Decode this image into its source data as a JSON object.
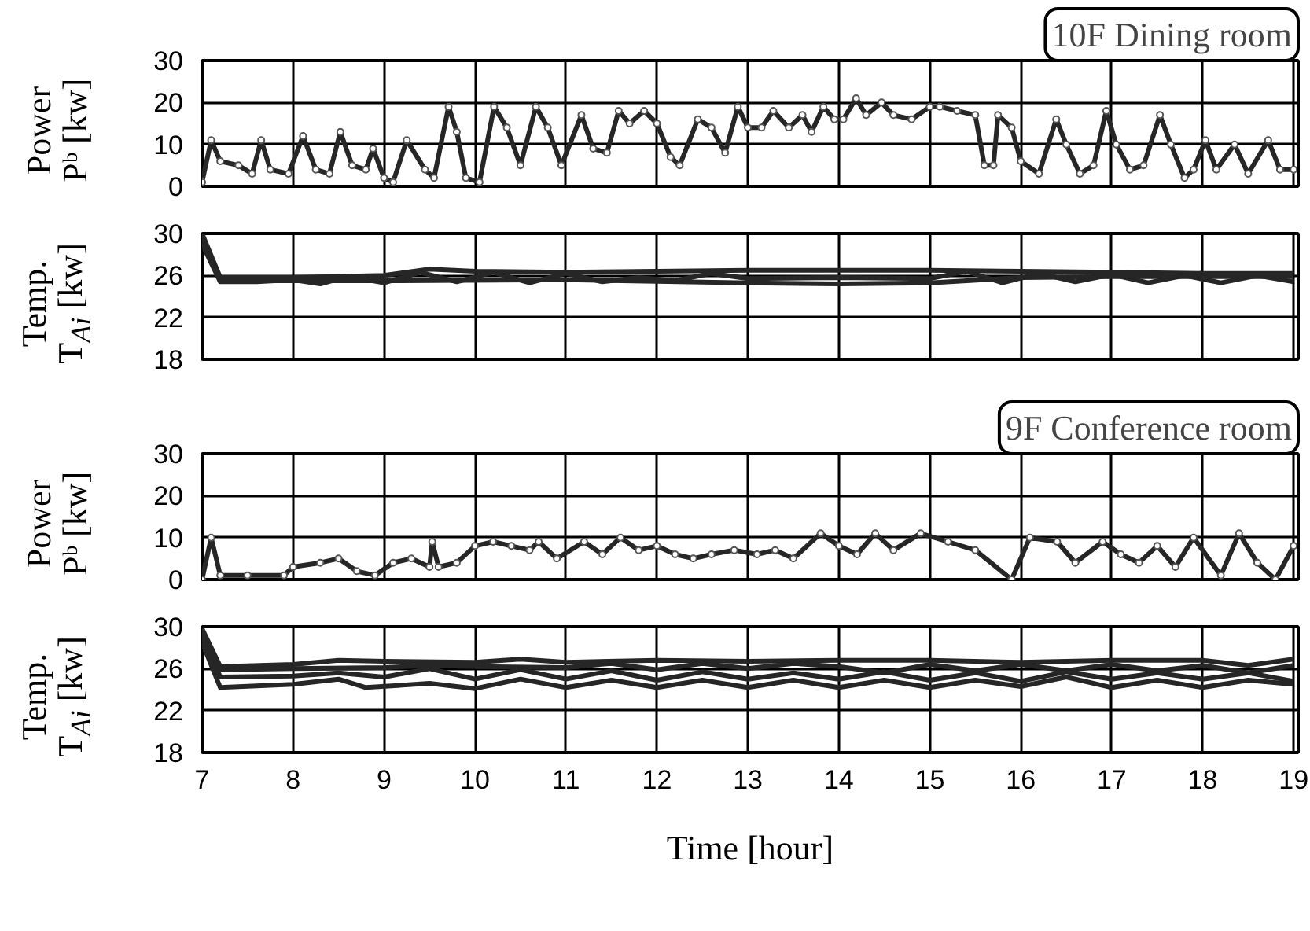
{
  "chart_data": [
    {
      "type": "line",
      "title": "10F Dining room",
      "ylabel": "Power Pᵇ [kw]",
      "xlim": [
        7,
        19.05
      ],
      "xticks": [
        7,
        8,
        9,
        10,
        11,
        12,
        13,
        14,
        15,
        16,
        17,
        18,
        19
      ],
      "ylim": [
        0,
        30
      ],
      "yticks": [
        0,
        10,
        20,
        30
      ],
      "grid": true,
      "tick_labels": "y",
      "marker": "circle",
      "line_style": "solid",
      "series": [
        {
          "color": "#262626",
          "x": [
            7.0,
            7.1,
            7.2,
            7.4,
            7.55,
            7.65,
            7.75,
            7.95,
            8.11,
            8.25,
            8.4,
            8.52,
            8.65,
            8.8,
            8.88,
            9.0,
            9.1,
            9.25,
            9.45,
            9.55,
            9.71,
            9.8,
            9.9,
            10.05,
            10.21,
            10.35,
            10.5,
            10.67,
            10.8,
            10.95,
            11.17,
            11.3,
            11.45,
            11.58,
            11.7,
            11.86,
            12.0,
            12.15,
            12.25,
            12.45,
            12.6,
            12.75,
            12.89,
            13.0,
            13.15,
            13.28,
            13.45,
            13.6,
            13.7,
            13.83,
            13.95,
            14.05,
            14.19,
            14.3,
            14.47,
            14.6,
            14.8,
            15.0,
            15.11,
            15.3,
            15.5,
            15.6,
            15.7,
            15.75,
            15.9,
            16.0,
            16.2,
            16.39,
            16.5,
            16.65,
            16.8,
            16.94,
            17.05,
            17.2,
            17.35,
            17.53,
            17.65,
            17.8,
            17.9,
            18.03,
            18.15,
            18.35,
            18.5,
            18.72,
            18.85,
            19.0
          ],
          "values": [
            1,
            11,
            6,
            5,
            3,
            11,
            4,
            3,
            12,
            4,
            3,
            13,
            5,
            4,
            9,
            2,
            1,
            11,
            4,
            2,
            19,
            13,
            2,
            1,
            19,
            14,
            5,
            19,
            14,
            5,
            17,
            9,
            8,
            18,
            15,
            18,
            15,
            7,
            5,
            16,
            14,
            8,
            19,
            14,
            14,
            18,
            14,
            17,
            13,
            19,
            16,
            16,
            21,
            17,
            20,
            17,
            16,
            19,
            19,
            18,
            17,
            5,
            5,
            17,
            14,
            6,
            3,
            16,
            10,
            3,
            5,
            18,
            10,
            4,
            5,
            17,
            10,
            2,
            4,
            11,
            4,
            10,
            3,
            11,
            4,
            4
          ]
        }
      ]
    },
    {
      "type": "line",
      "ylabel": "Temp. T$_{Ai}$ [kw]",
      "xlim": [
        7,
        19.05
      ],
      "xticks": [
        7,
        8,
        9,
        10,
        11,
        12,
        13,
        14,
        15,
        16,
        17,
        18,
        19
      ],
      "ylim": [
        18,
        30
      ],
      "yticks": [
        18,
        22,
        26,
        30
      ],
      "grid": true,
      "tick_labels": "y",
      "line_style": "solid",
      "series": [
        {
          "color": "#262626",
          "x": [
            7,
            7.2,
            8,
            9,
            9.5,
            10,
            11,
            12,
            13,
            14,
            15,
            16,
            17,
            18,
            19
          ],
          "values": [
            30,
            25.8,
            25.8,
            26,
            26.6,
            26.4,
            26.3,
            26.4,
            26.5,
            26.5,
            26.5,
            26.4,
            26.3,
            26.2,
            26.2
          ]
        },
        {
          "color": "#262626",
          "x": [
            7,
            7.2,
            7.6,
            8,
            8.3,
            8.6,
            9,
            9.4,
            9.8,
            10.2,
            10.6,
            11,
            11.4,
            11.8,
            12.2,
            12.6,
            13,
            14,
            15,
            15.4,
            15.8,
            16.2,
            16.6,
            17,
            17.4,
            17.8,
            18.2,
            18.6,
            19
          ],
          "values": [
            29,
            25.4,
            25.4,
            25.6,
            25.2,
            25.9,
            25.3,
            26.3,
            25.4,
            26.3,
            25.3,
            26.2,
            25.4,
            25.8,
            25.5,
            26.2,
            25.7,
            25.8,
            25.7,
            26.4,
            25.3,
            26.2,
            25.4,
            26.1,
            25.3,
            26,
            25.3,
            26,
            25.4
          ]
        },
        {
          "color": "#262626",
          "x": [
            7,
            7.2,
            9,
            11,
            13,
            14,
            15,
            16,
            17,
            19
          ],
          "values": [
            29.5,
            25.5,
            25.5,
            25.6,
            25.3,
            25.2,
            25.3,
            25.8,
            25.9,
            25.9
          ]
        }
      ]
    },
    {
      "type": "line",
      "title": "9F Conference room",
      "ylabel": "Power Pᵇ [kw]",
      "xlim": [
        7,
        19.05
      ],
      "xticks": [
        7,
        8,
        9,
        10,
        11,
        12,
        13,
        14,
        15,
        16,
        17,
        18,
        19
      ],
      "ylim": [
        0,
        30
      ],
      "yticks": [
        0,
        10,
        20,
        30
      ],
      "grid": true,
      "tick_labels": "y",
      "marker": "circle",
      "line_style": "solid",
      "series": [
        {
          "color": "#262626",
          "x": [
            7.0,
            7.1,
            7.2,
            7.5,
            7.9,
            8.0,
            8.3,
            8.5,
            8.7,
            8.9,
            9.1,
            9.3,
            9.5,
            9.53,
            9.6,
            9.8,
            10.0,
            10.2,
            10.4,
            10.6,
            10.7,
            10.9,
            11.2,
            11.4,
            11.6,
            11.8,
            12.0,
            12.2,
            12.4,
            12.6,
            12.85,
            13.1,
            13.3,
            13.5,
            13.8,
            14.0,
            14.2,
            14.4,
            14.6,
            14.9,
            15.2,
            15.5,
            15.9,
            16.1,
            16.4,
            16.6,
            16.9,
            17.1,
            17.3,
            17.5,
            17.7,
            17.9,
            18.2,
            18.4,
            18.6,
            18.8,
            19.0
          ],
          "values": [
            0,
            10,
            1,
            1,
            1,
            3,
            4,
            5,
            2,
            1,
            4,
            5,
            3,
            9,
            3,
            4,
            8,
            9,
            8,
            7,
            9,
            5,
            9,
            6,
            10,
            7,
            8,
            6,
            5,
            6,
            7,
            6,
            7,
            5,
            11,
            8,
            6,
            11,
            7,
            11,
            9,
            7,
            0,
            10,
            9,
            4,
            9,
            6,
            4,
            8,
            3,
            10,
            1,
            11,
            4,
            0,
            8
          ]
        }
      ]
    },
    {
      "type": "line",
      "ylabel": "Temp. T$_{Ai}$ [kw]",
      "xlabel": "Time [hour]",
      "xlim": [
        7,
        19.05
      ],
      "xticks": [
        7,
        8,
        9,
        10,
        11,
        12,
        13,
        14,
        15,
        16,
        17,
        18,
        19
      ],
      "ylim": [
        18,
        30
      ],
      "yticks": [
        18,
        22,
        26,
        30
      ],
      "grid": true,
      "line_style": "solid",
      "series": [
        {
          "color": "#262626",
          "x": [
            7,
            7.2,
            8,
            8.5,
            9,
            10,
            10.5,
            11,
            12,
            13,
            14,
            15,
            16,
            17,
            18,
            18.5,
            19
          ],
          "values": [
            29.8,
            26.2,
            26.4,
            26.8,
            26.7,
            26.6,
            26.9,
            26.6,
            26.8,
            26.7,
            26.8,
            26.8,
            26.6,
            26.8,
            26.8,
            26.3,
            26.9
          ]
        },
        {
          "color": "#262626",
          "x": [
            7,
            7.2,
            8,
            9,
            9.5,
            10,
            11,
            11.5,
            12,
            12.5,
            13,
            13.5,
            14,
            14.5,
            15,
            15.5,
            16,
            16.5,
            17,
            17.5,
            18,
            18.5,
            19
          ],
          "values": [
            29.5,
            25.9,
            26,
            26.1,
            26.3,
            26.2,
            26.1,
            26.5,
            25.9,
            26.5,
            26,
            26.5,
            26.2,
            25.6,
            26.4,
            25.8,
            26.4,
            25.8,
            26.4,
            25.8,
            26.3,
            25.6,
            26.3
          ]
        },
        {
          "color": "#262626",
          "x": [
            7,
            7.2,
            8,
            8.5,
            9,
            9.5,
            10,
            10.5,
            11,
            11.5,
            12,
            12.5,
            13,
            13.5,
            14,
            14.5,
            15,
            15.5,
            16,
            16.5,
            17,
            17.5,
            18,
            18.5,
            19
          ],
          "values": [
            29.2,
            25.2,
            25.3,
            25.6,
            25.2,
            26,
            25,
            25.9,
            25,
            25.8,
            24.9,
            25.7,
            25,
            25.6,
            25,
            25.7,
            24.9,
            25.6,
            24.8,
            25.7,
            25,
            25.6,
            25,
            25.6,
            24.8
          ]
        },
        {
          "color": "#262626",
          "x": [
            7,
            7.2,
            8,
            8.5,
            8.8,
            9.5,
            10,
            10.5,
            11,
            11.5,
            12,
            12.5,
            13,
            13.5,
            14,
            14.5,
            15,
            15.5,
            16,
            16.5,
            17,
            17.5,
            18,
            18.5,
            19
          ],
          "values": [
            28.5,
            24.2,
            24.5,
            25,
            24.2,
            24.6,
            24.1,
            25,
            24.2,
            24.9,
            24.2,
            24.9,
            24.2,
            24.9,
            24.2,
            24.9,
            24.2,
            24.9,
            24.3,
            25.2,
            24.2,
            24.9,
            24.2,
            24.9,
            24.5
          ]
        }
      ]
    }
  ]
}
